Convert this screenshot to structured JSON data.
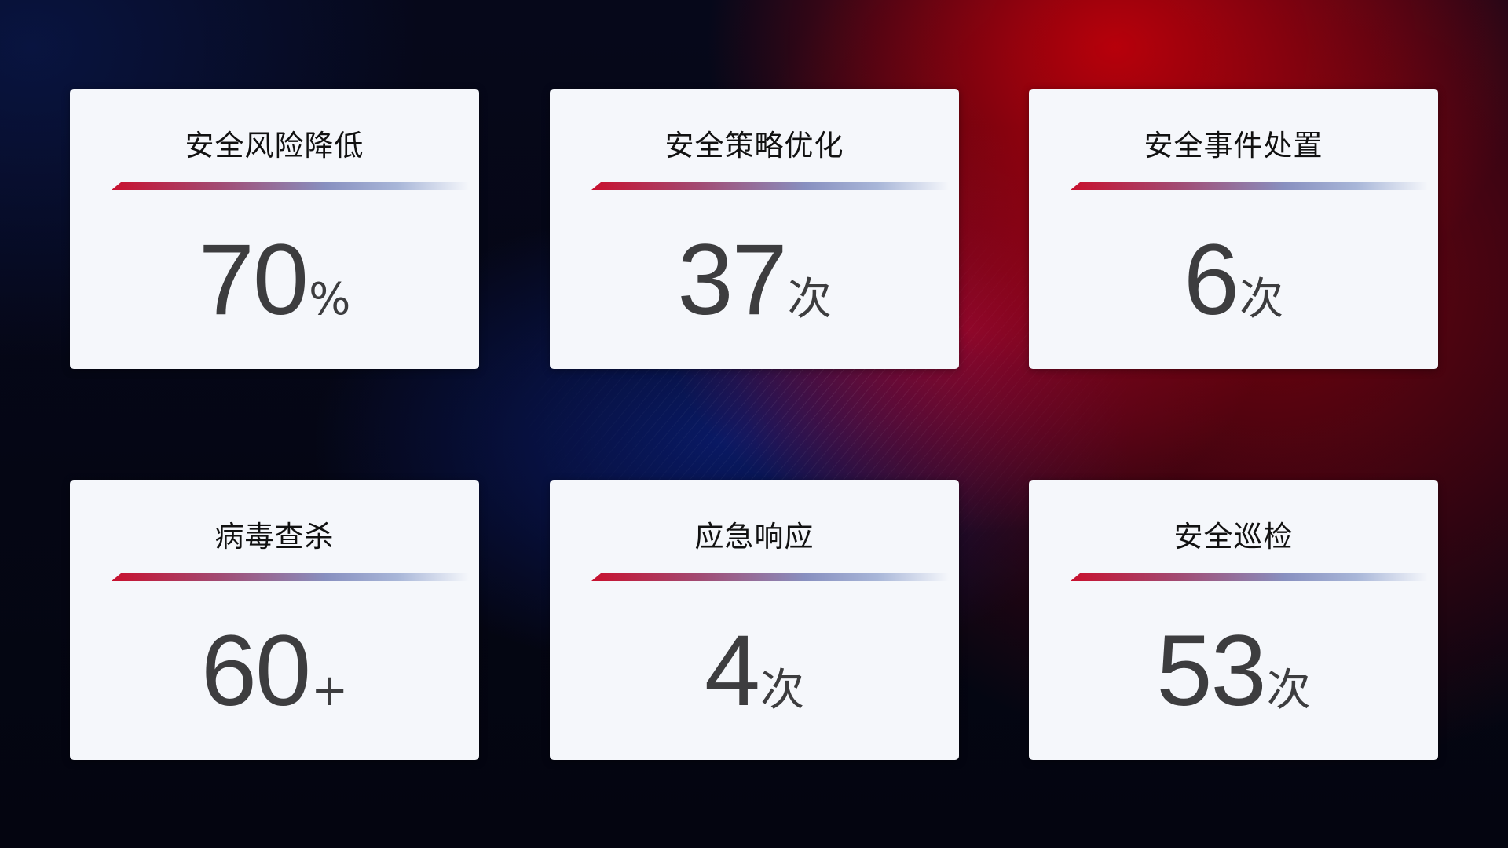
{
  "cards": [
    {
      "title": "安全风险降低",
      "value": "70",
      "unit": "%"
    },
    {
      "title": "安全策略优化",
      "value": "37",
      "unit": "次"
    },
    {
      "title": "安全事件处置",
      "value": "6",
      "unit": "次"
    },
    {
      "title": "病毒查杀",
      "value": "60",
      "unit": "+"
    },
    {
      "title": "应急响应",
      "value": "4",
      "unit": "次"
    },
    {
      "title": "安全巡检",
      "value": "53",
      "unit": "次"
    }
  ],
  "colors": {
    "accent_red": "#c8102e",
    "accent_blue": "#8890c0",
    "card_bg": "#f5f7fb",
    "value_text": "#3d3d3f"
  }
}
